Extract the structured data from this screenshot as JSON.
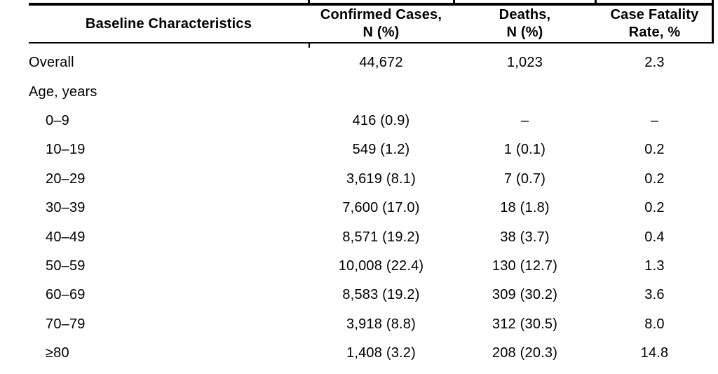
{
  "colors": {
    "text": "#000000",
    "border": "#000000",
    "background": "#ffffff"
  },
  "table": {
    "header": {
      "col1": "Baseline Characteristics",
      "col2_line1": "Confirmed Cases,",
      "col2_line2": "N (%)",
      "col3_line1": "Deaths,",
      "col3_line2": "N (%)",
      "col4_line1": "Case Fatality",
      "col4_line2": "Rate, %"
    },
    "rows": [
      {
        "label": "Overall",
        "confirmed_cases": "44,672",
        "deaths": "1,023",
        "case_fatality_rate": "2.3"
      },
      {
        "label": "Age, years",
        "confirmed_cases": "",
        "deaths": "",
        "case_fatality_rate": ""
      },
      {
        "label": "0–9",
        "confirmed_cases": "416 (0.9)",
        "deaths": "–",
        "case_fatality_rate": "–"
      },
      {
        "label": "10–19",
        "confirmed_cases": "549 (1.2)",
        "deaths": "1 (0.1)",
        "case_fatality_rate": "0.2"
      },
      {
        "label": "20–29",
        "confirmed_cases": "3,619 (8.1)",
        "deaths": "7 (0.7)",
        "case_fatality_rate": "0.2"
      },
      {
        "label": "30–39",
        "confirmed_cases": "7,600 (17.0)",
        "deaths": "18 (1.8)",
        "case_fatality_rate": "0.2"
      },
      {
        "label": "40–49",
        "confirmed_cases": "8,571 (19.2)",
        "deaths": "38 (3.7)",
        "case_fatality_rate": "0.4"
      },
      {
        "label": "50–59",
        "confirmed_cases": "10,008 (22.4)",
        "deaths": "130 (12.7)",
        "case_fatality_rate": "1.3"
      },
      {
        "label": "60–69",
        "confirmed_cases": "8,583 (19.2)",
        "deaths": "309 (30.2)",
        "case_fatality_rate": "3.6"
      },
      {
        "label": "70–79",
        "confirmed_cases": "3,918 (8.8)",
        "deaths": "312 (30.5)",
        "case_fatality_rate": "8.0"
      },
      {
        "label": "≥80",
        "confirmed_cases": "1,408 (3.2)",
        "deaths": "208 (20.3)",
        "case_fatality_rate": "14.8"
      }
    ]
  },
  "chart_data": {
    "type": "table",
    "columns": [
      "Baseline Characteristics",
      "Confirmed Cases, N (%)",
      "Deaths, N (%)",
      "Case Fatality Rate, %"
    ],
    "rows": [
      [
        "Overall",
        "44,672",
        "1,023",
        "2.3"
      ],
      [
        "Age, years",
        "",
        "",
        ""
      ],
      [
        "0–9",
        "416 (0.9)",
        "–",
        "–"
      ],
      [
        "10–19",
        "549 (1.2)",
        "1 (0.1)",
        "0.2"
      ],
      [
        "20–29",
        "3,619 (8.1)",
        "7 (0.7)",
        "0.2"
      ],
      [
        "30–39",
        "7,600 (17.0)",
        "18 (1.8)",
        "0.2"
      ],
      [
        "40–49",
        "8,571 (19.2)",
        "38 (3.7)",
        "0.4"
      ],
      [
        "50–59",
        "10,008 (22.4)",
        "130 (12.7)",
        "1.3"
      ],
      [
        "60–69",
        "8,583 (19.2)",
        "309 (30.2)",
        "3.6"
      ],
      [
        "70–79",
        "3,918 (8.8)",
        "312 (30.5)",
        "8.0"
      ],
      [
        "≥80",
        "1,408 (3.2)",
        "208 (20.3)",
        "14.8"
      ]
    ]
  }
}
